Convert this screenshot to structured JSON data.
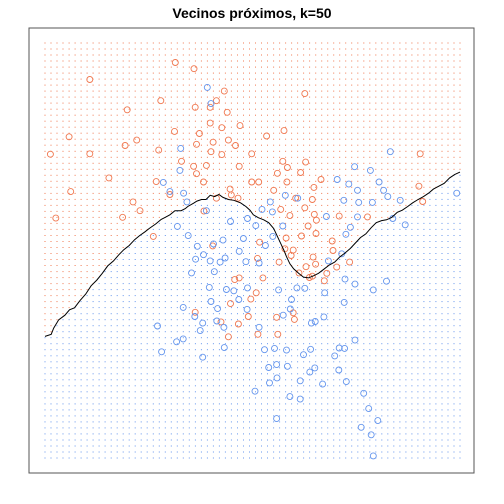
{
  "chart_data": {
    "type": "scatter",
    "title": "Vecinos próximos, k=50",
    "xlabel": "",
    "ylabel": "",
    "xlim": [
      0,
      100
    ],
    "ylim": [
      0,
      100
    ],
    "grid": false,
    "legend": "none",
    "colors": {
      "orange": "#f07850",
      "blue": "#6495ed",
      "boundary": "#000000",
      "frame": "#555555"
    },
    "boundary": [
      [
        0,
        29.3
      ],
      [
        1.5,
        29.8
      ],
      [
        2.1,
        31.3
      ],
      [
        3.3,
        33.3
      ],
      [
        4.8,
        34.4
      ],
      [
        5.9,
        35.7
      ],
      [
        7.1,
        36.2
      ],
      [
        8.4,
        37.9
      ],
      [
        9.8,
        39.5
      ],
      [
        11.1,
        41.5
      ],
      [
        12.5,
        42.9
      ],
      [
        13.8,
        44.5
      ],
      [
        15.1,
        46.3
      ],
      [
        16.5,
        47.5
      ],
      [
        17.8,
        49.0
      ],
      [
        19.0,
        50.2
      ],
      [
        20.3,
        51.2
      ],
      [
        21.6,
        52.6
      ],
      [
        22.8,
        53.6
      ],
      [
        24.1,
        54.5
      ],
      [
        25.1,
        55.3
      ],
      [
        26.7,
        56.4
      ],
      [
        28.0,
        57.5
      ],
      [
        29.0,
        58.0
      ],
      [
        30.1,
        58.6
      ],
      [
        31.3,
        59.6
      ],
      [
        32.8,
        59.6
      ],
      [
        33.8,
        60.1
      ],
      [
        34.4,
        60.6
      ],
      [
        35.8,
        61.4
      ],
      [
        36.6,
        61.9
      ],
      [
        37.7,
        62.3
      ],
      [
        38.8,
        62.3
      ],
      [
        39.8,
        63.3
      ],
      [
        40.9,
        63.0
      ],
      [
        41.9,
        63.5
      ],
      [
        42.9,
        62.8
      ],
      [
        44.2,
        62.3
      ],
      [
        45.5,
        62.1
      ],
      [
        47.1,
        61.5
      ],
      [
        48.4,
        60.6
      ],
      [
        49.4,
        59.7
      ],
      [
        50.2,
        58.6
      ],
      [
        51.4,
        57.9
      ],
      [
        52.7,
        57.4
      ],
      [
        53.9,
        56.7
      ],
      [
        55.1,
        55.3
      ],
      [
        55.9,
        53.6
      ],
      [
        56.9,
        51.5
      ],
      [
        57.6,
        50.0
      ],
      [
        58.2,
        48.5
      ],
      [
        59.0,
        46.8
      ],
      [
        59.9,
        45.6
      ],
      [
        61.1,
        44.5
      ],
      [
        62.3,
        43.6
      ],
      [
        63.5,
        43.4
      ],
      [
        64.7,
        43.9
      ],
      [
        65.9,
        44.5
      ],
      [
        67.2,
        45.5
      ],
      [
        68.5,
        46.5
      ],
      [
        69.8,
        47.2
      ],
      [
        71.0,
        48.4
      ],
      [
        72.3,
        49.4
      ],
      [
        73.6,
        50.5
      ],
      [
        74.8,
        51.8
      ],
      [
        76.0,
        53.1
      ],
      [
        77.3,
        54.0
      ],
      [
        78.6,
        55.5
      ],
      [
        79.8,
        56.7
      ],
      [
        81.1,
        57.2
      ],
      [
        82.3,
        57.4
      ],
      [
        83.6,
        58.0
      ],
      [
        84.9,
        59.2
      ],
      [
        86.1,
        59.7
      ],
      [
        87.4,
        60.6
      ],
      [
        88.6,
        61.5
      ],
      [
        89.9,
        62.3
      ],
      [
        91.2,
        63.0
      ],
      [
        92.4,
        63.8
      ],
      [
        93.6,
        64.8
      ],
      [
        94.9,
        65.5
      ],
      [
        96.2,
        66.2
      ],
      [
        97.5,
        67.5
      ],
      [
        98.7,
        68.3
      ],
      [
        100,
        68.9
      ]
    ],
    "series": [
      {
        "color": "orange",
        "points": [
          [
            31.4,
            95.3
          ],
          [
            35.9,
            93.8
          ],
          [
            10.8,
            91.2
          ],
          [
            27.9,
            86.1
          ],
          [
            43.2,
            88.4
          ],
          [
            41.3,
            86.1
          ],
          [
            39.8,
            84.5
          ],
          [
            36.2,
            84.5
          ],
          [
            19.8,
            83.9
          ],
          [
            43.9,
            83.3
          ],
          [
            62.6,
            87.8
          ],
          [
            39.8,
            80.7
          ],
          [
            42.6,
            79.6
          ],
          [
            37.2,
            78.2
          ],
          [
            31.2,
            78.7
          ],
          [
            47.0,
            80.1
          ],
          [
            57.6,
            78.9
          ],
          [
            44.2,
            76.6
          ],
          [
            40.5,
            76.1
          ],
          [
            19.3,
            75.3
          ],
          [
            5.8,
            77.4
          ],
          [
            22.1,
            76.6
          ],
          [
            40.0,
            73.8
          ],
          [
            36.5,
            75.6
          ],
          [
            49.8,
            73.3
          ],
          [
            42.6,
            73.1
          ],
          [
            32.9,
            71.5
          ],
          [
            1.3,
            73.2
          ],
          [
            10.8,
            73.3
          ],
          [
            27.4,
            74.2
          ],
          [
            38.9,
            70.5
          ],
          [
            46.8,
            70.3
          ],
          [
            57.3,
            71.5
          ],
          [
            58.4,
            70.0
          ],
          [
            62.8,
            71.3
          ],
          [
            61.6,
            68.8
          ],
          [
            56.0,
            68.6
          ],
          [
            49.8,
            66.5
          ],
          [
            26.8,
            66.6
          ],
          [
            36.5,
            68.5
          ],
          [
            38.2,
            66.5
          ],
          [
            44.6,
            64.8
          ],
          [
            51.5,
            66.5
          ],
          [
            55.1,
            64.5
          ],
          [
            58.3,
            66.5
          ],
          [
            44.9,
            63.4
          ],
          [
            46.5,
            62.6
          ],
          [
            41.3,
            62.6
          ],
          [
            6.2,
            64.2
          ],
          [
            21.2,
            61.7
          ],
          [
            30.1,
            63.5
          ],
          [
            22.9,
            59.6
          ],
          [
            38.3,
            59.5
          ],
          [
            2.6,
            57.8
          ],
          [
            56.8,
            59.9
          ],
          [
            60.4,
            62.6
          ],
          [
            59.0,
            58.4
          ],
          [
            62.6,
            60.3
          ],
          [
            63.4,
            55.9
          ],
          [
            65.4,
            57.3
          ],
          [
            65.3,
            54.1
          ],
          [
            61.8,
            53.5
          ],
          [
            58.1,
            53.0
          ],
          [
            51.7,
            52.0
          ],
          [
            57.8,
            50.4
          ],
          [
            59.8,
            50.1
          ],
          [
            56.4,
            47.2
          ],
          [
            62.9,
            46.1
          ],
          [
            64.6,
            48.4
          ],
          [
            65.2,
            46.7
          ],
          [
            69.2,
            52.3
          ],
          [
            69.4,
            50.0
          ],
          [
            70.3,
            46.0
          ],
          [
            73.4,
            47.2
          ],
          [
            67.9,
            44.5
          ],
          [
            63.7,
            43.5
          ],
          [
            61.2,
            44.6
          ],
          [
            67.3,
            42.7
          ],
          [
            52.5,
            43.4
          ],
          [
            46.8,
            43.4
          ],
          [
            59.3,
            48.8
          ],
          [
            64.9,
            58.7
          ],
          [
            64.4,
            62.3
          ],
          [
            70.9,
            58.3
          ],
          [
            77.7,
            58.1
          ],
          [
            90.1,
            65.5
          ],
          [
            91.0,
            61.8
          ],
          [
            90.4,
            73.3
          ],
          [
            15.4,
            67.5
          ],
          [
            18.7,
            58.0
          ],
          [
            26.1,
            53.4
          ],
          [
            40.4,
            51.1
          ],
          [
            45.7,
            43.0
          ],
          [
            42.4,
            32.8
          ],
          [
            60.1,
            33.4
          ],
          [
            59.8,
            35.0
          ],
          [
            55.8,
            33.9
          ],
          [
            49.6,
            38.3
          ],
          [
            36.2,
            35.1
          ],
          [
            51.3,
            29.8
          ],
          [
            44.2,
            29.2
          ],
          [
            64.4,
            43.8
          ],
          [
            45.9,
            75.3
          ],
          [
            53.4,
            77.6
          ],
          [
            66.5,
            67.1
          ],
          [
            64.8,
            65.2
          ],
          [
            35.8,
            70.3
          ],
          [
            51.2,
            48.1
          ],
          [
            50.9,
            39.8
          ],
          [
            44.7,
            37.2
          ],
          [
            49.0,
            34.1
          ],
          [
            46.6,
            32.3
          ],
          [
            56.1,
            29.8
          ]
        ]
      },
      {
        "color": "blue",
        "points": [
          [
            39.1,
            89.3
          ],
          [
            40.0,
            85.4
          ],
          [
            32.7,
            74.6
          ],
          [
            32.5,
            69.3
          ],
          [
            33.4,
            63.8
          ],
          [
            30.1,
            64.2
          ],
          [
            28.5,
            66.4
          ],
          [
            34.2,
            61.7
          ],
          [
            38.9,
            59.6
          ],
          [
            44.7,
            57.0
          ],
          [
            31.9,
            55.8
          ],
          [
            34.5,
            53.6
          ],
          [
            42.9,
            52.5
          ],
          [
            40.6,
            51.6
          ],
          [
            36.7,
            51.0
          ],
          [
            38.2,
            49.0
          ],
          [
            43.4,
            48.2
          ],
          [
            46.8,
            49.8
          ],
          [
            48.4,
            47.3
          ],
          [
            51.6,
            47.0
          ],
          [
            53.1,
            51.2
          ],
          [
            54.9,
            53.4
          ],
          [
            57.3,
            55.9
          ],
          [
            52.3,
            59.9
          ],
          [
            54.8,
            59.3
          ],
          [
            54.3,
            61.7
          ],
          [
            57.9,
            63.3
          ],
          [
            60.9,
            62.6
          ],
          [
            72.0,
            62.1
          ],
          [
            75.6,
            61.6
          ],
          [
            82.6,
            63.0
          ],
          [
            85.6,
            62.1
          ],
          [
            83.2,
            73.8
          ],
          [
            70.4,
            67.1
          ],
          [
            73.2,
            66.0
          ],
          [
            75.3,
            64.5
          ],
          [
            74.6,
            70.2
          ],
          [
            78.4,
            69.3
          ],
          [
            75.3,
            58.1
          ],
          [
            73.6,
            55.6
          ],
          [
            83.8,
            57.7
          ],
          [
            86.8,
            56.2
          ],
          [
            99.2,
            63.8
          ],
          [
            71.5,
            49.2
          ],
          [
            68.3,
            47.5
          ],
          [
            72.3,
            43.1
          ],
          [
            82.3,
            42.6
          ],
          [
            79.1,
            40.5
          ],
          [
            72.1,
            37.5
          ],
          [
            56.3,
            40.5
          ],
          [
            59.4,
            38.2
          ],
          [
            62.6,
            40.9
          ],
          [
            48.8,
            41.0
          ],
          [
            45.5,
            40.3
          ],
          [
            46.7,
            38.2
          ],
          [
            48.7,
            35.8
          ],
          [
            41.6,
            36.0
          ],
          [
            40.0,
            37.7
          ],
          [
            38.0,
            32.5
          ],
          [
            33.3,
            36.3
          ],
          [
            27.1,
            31.8
          ],
          [
            31.7,
            28.0
          ],
          [
            37.4,
            30.7
          ],
          [
            57.4,
            34.4
          ],
          [
            59.1,
            35.9
          ],
          [
            65.1,
            32.9
          ],
          [
            67.2,
            34.0
          ],
          [
            55.3,
            26.4
          ],
          [
            55.8,
            22.5
          ],
          [
            58.2,
            26.0
          ],
          [
            64.0,
            26.2
          ],
          [
            62.3,
            24.9
          ],
          [
            65.0,
            21.7
          ],
          [
            70.9,
            26.5
          ],
          [
            72.2,
            26.4
          ],
          [
            53.9,
            21.8
          ],
          [
            55.9,
            19.3
          ],
          [
            43.2,
            26.6
          ],
          [
            38.0,
            24.3
          ],
          [
            28.1,
            25.6
          ],
          [
            50.6,
            16.1
          ],
          [
            59.0,
            14.8
          ],
          [
            61.5,
            18.6
          ],
          [
            63.8,
            20.7
          ],
          [
            72.6,
            18.4
          ],
          [
            76.8,
            15.6
          ],
          [
            78.0,
            11.9
          ],
          [
            80.2,
            9.0
          ],
          [
            78.6,
            5.6
          ],
          [
            76.2,
            7.4
          ],
          [
            55.8,
            9.5
          ],
          [
            79.1,
            0.5
          ],
          [
            43.7,
            40.6
          ],
          [
            39.6,
            41.1
          ],
          [
            36.1,
            34.1
          ],
          [
            41.4,
            33.0
          ],
          [
            43.1,
            31.5
          ],
          [
            51.6,
            31.5
          ],
          [
            52.9,
            26.1
          ],
          [
            54.1,
            18.1
          ],
          [
            58.4,
            22.1
          ],
          [
            33.3,
            28.7
          ],
          [
            42.2,
            47.2
          ],
          [
            47.8,
            52.9
          ],
          [
            50.8,
            56.0
          ],
          [
            39.8,
            47.5
          ],
          [
            35.3,
            44.6
          ],
          [
            48.8,
            57.7
          ],
          [
            60.7,
            41.0
          ],
          [
            67.4,
            39.8
          ],
          [
            74.7,
            41.9
          ],
          [
            72.5,
            53.9
          ],
          [
            78.9,
            61.6
          ],
          [
            81.6,
            64.5
          ],
          [
            67.8,
            58.2
          ],
          [
            80.5,
            66.5
          ],
          [
            61.5,
            14.2
          ],
          [
            64.2,
            32.5
          ],
          [
            69.8,
            24.6
          ],
          [
            74.7,
            28.4
          ],
          [
            66.9,
            17.8
          ],
          [
            70.8,
            21.2
          ],
          [
            40.8,
            44.9
          ],
          [
            36.3,
            47.9
          ]
        ]
      }
    ]
  }
}
